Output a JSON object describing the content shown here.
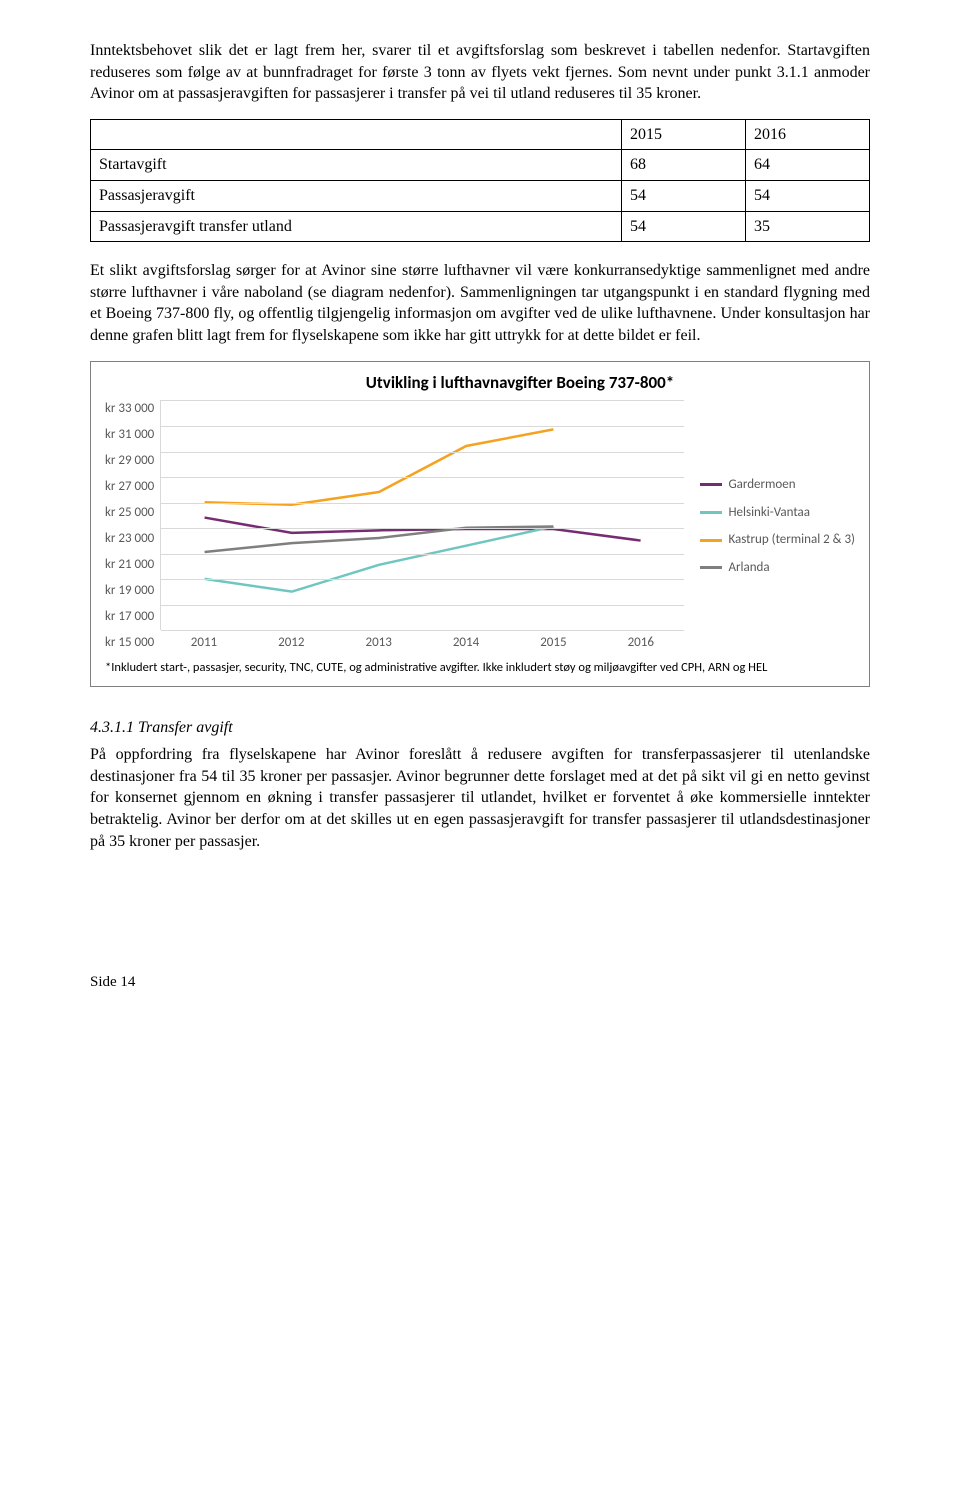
{
  "intro_para": "Inntektsbehovet slik det er lagt frem her, svarer til et avgiftsforslag som beskrevet i tabellen nedenfor. Startavgiften reduseres som følge av at bunnfradraget for første 3 tonn av flyets vekt fjernes. Som nevnt under punkt 3.1.1 anmoder Avinor om at passasjeravgiften for passasjerer i transfer på vei til utland reduseres til 35 kroner.",
  "table": {
    "columns": [
      "",
      "2015",
      "2016"
    ],
    "rows": [
      [
        "Startavgift",
        "68",
        "64"
      ],
      [
        "Passasjeravgift",
        "54",
        "54"
      ],
      [
        "Passasjeravgift transfer utland",
        "54",
        "35"
      ]
    ]
  },
  "para2": "Et slikt avgiftsforslag sørger for at Avinor sine større lufthavner vil være konkurransedyktige sammenlignet med andre større lufthavner i våre naboland (se diagram nedenfor). Sammenligningen tar utgangspunkt i en standard flygning med et Boeing 737-800 fly, og offentlig tilgjengelig informasjon om avgifter ved de ulike lufthavnene. Under konsultasjon har denne grafen blitt lagt frem for flyselskapene som ikke har gitt uttrykk for at dette bildet er feil.",
  "chart": {
    "type": "line",
    "title": "Utvikling i lufthavnavgifter Boeing 737-800*",
    "y_ticks": [
      "kr 33 000",
      "kr 31 000",
      "kr 29 000",
      "kr 27 000",
      "kr 25 000",
      "kr 23 000",
      "kr 21 000",
      "kr 19 000",
      "kr 17 000",
      "kr 15 000"
    ],
    "x_ticks": [
      "2011",
      "2012",
      "2013",
      "2014",
      "2015",
      "2016"
    ],
    "ylim": [
      15000,
      33000
    ],
    "grid_color": "#d9d9d9",
    "background_color": "#ffffff",
    "axis_text_color": "#595959",
    "line_width": 2.5,
    "series": [
      {
        "name": "Gardermoen",
        "color": "#772c72",
        "values": [
          23800,
          22600,
          22800,
          22900,
          22900,
          22000
        ]
      },
      {
        "name": "Helsinki-Vantaa",
        "color": "#6fc6c0",
        "values": [
          19000,
          18000,
          20100,
          21600,
          23100,
          null
        ]
      },
      {
        "name": "Kastrup (terminal 2 & 3)",
        "color": "#f5a21f",
        "values": [
          25000,
          24800,
          25800,
          29400,
          30700,
          null
        ]
      },
      {
        "name": "Arlanda",
        "color": "#7f7f7f",
        "values": [
          21100,
          21800,
          22200,
          23000,
          23100,
          null
        ]
      }
    ],
    "footnote": "*Inkludert start-, passasjer, security, TNC, CUTE, og administrative avgifter. Ikke inkludert støy og miljøavgifter ved CPH, ARN og HEL"
  },
  "section_heading": "4.3.1.1 Transfer avgift",
  "para3": "På oppfordring fra flyselskapene har Avinor foreslått å redusere avgiften for transferpassasjerer til utenlandske destinasjoner fra 54 til 35 kroner per passasjer. Avinor begrunner dette forslaget med at det på sikt vil gi en netto gevinst for konsernet gjennom en økning i transfer passasjerer til utlandet, hvilket er forventet å øke kommersielle inntekter betraktelig. Avinor ber derfor om at det skilles ut en egen passasjeravgift for transfer passasjerer til utlandsdestinasjoner på 35 kroner per passasjer.",
  "footer": "Side 14"
}
